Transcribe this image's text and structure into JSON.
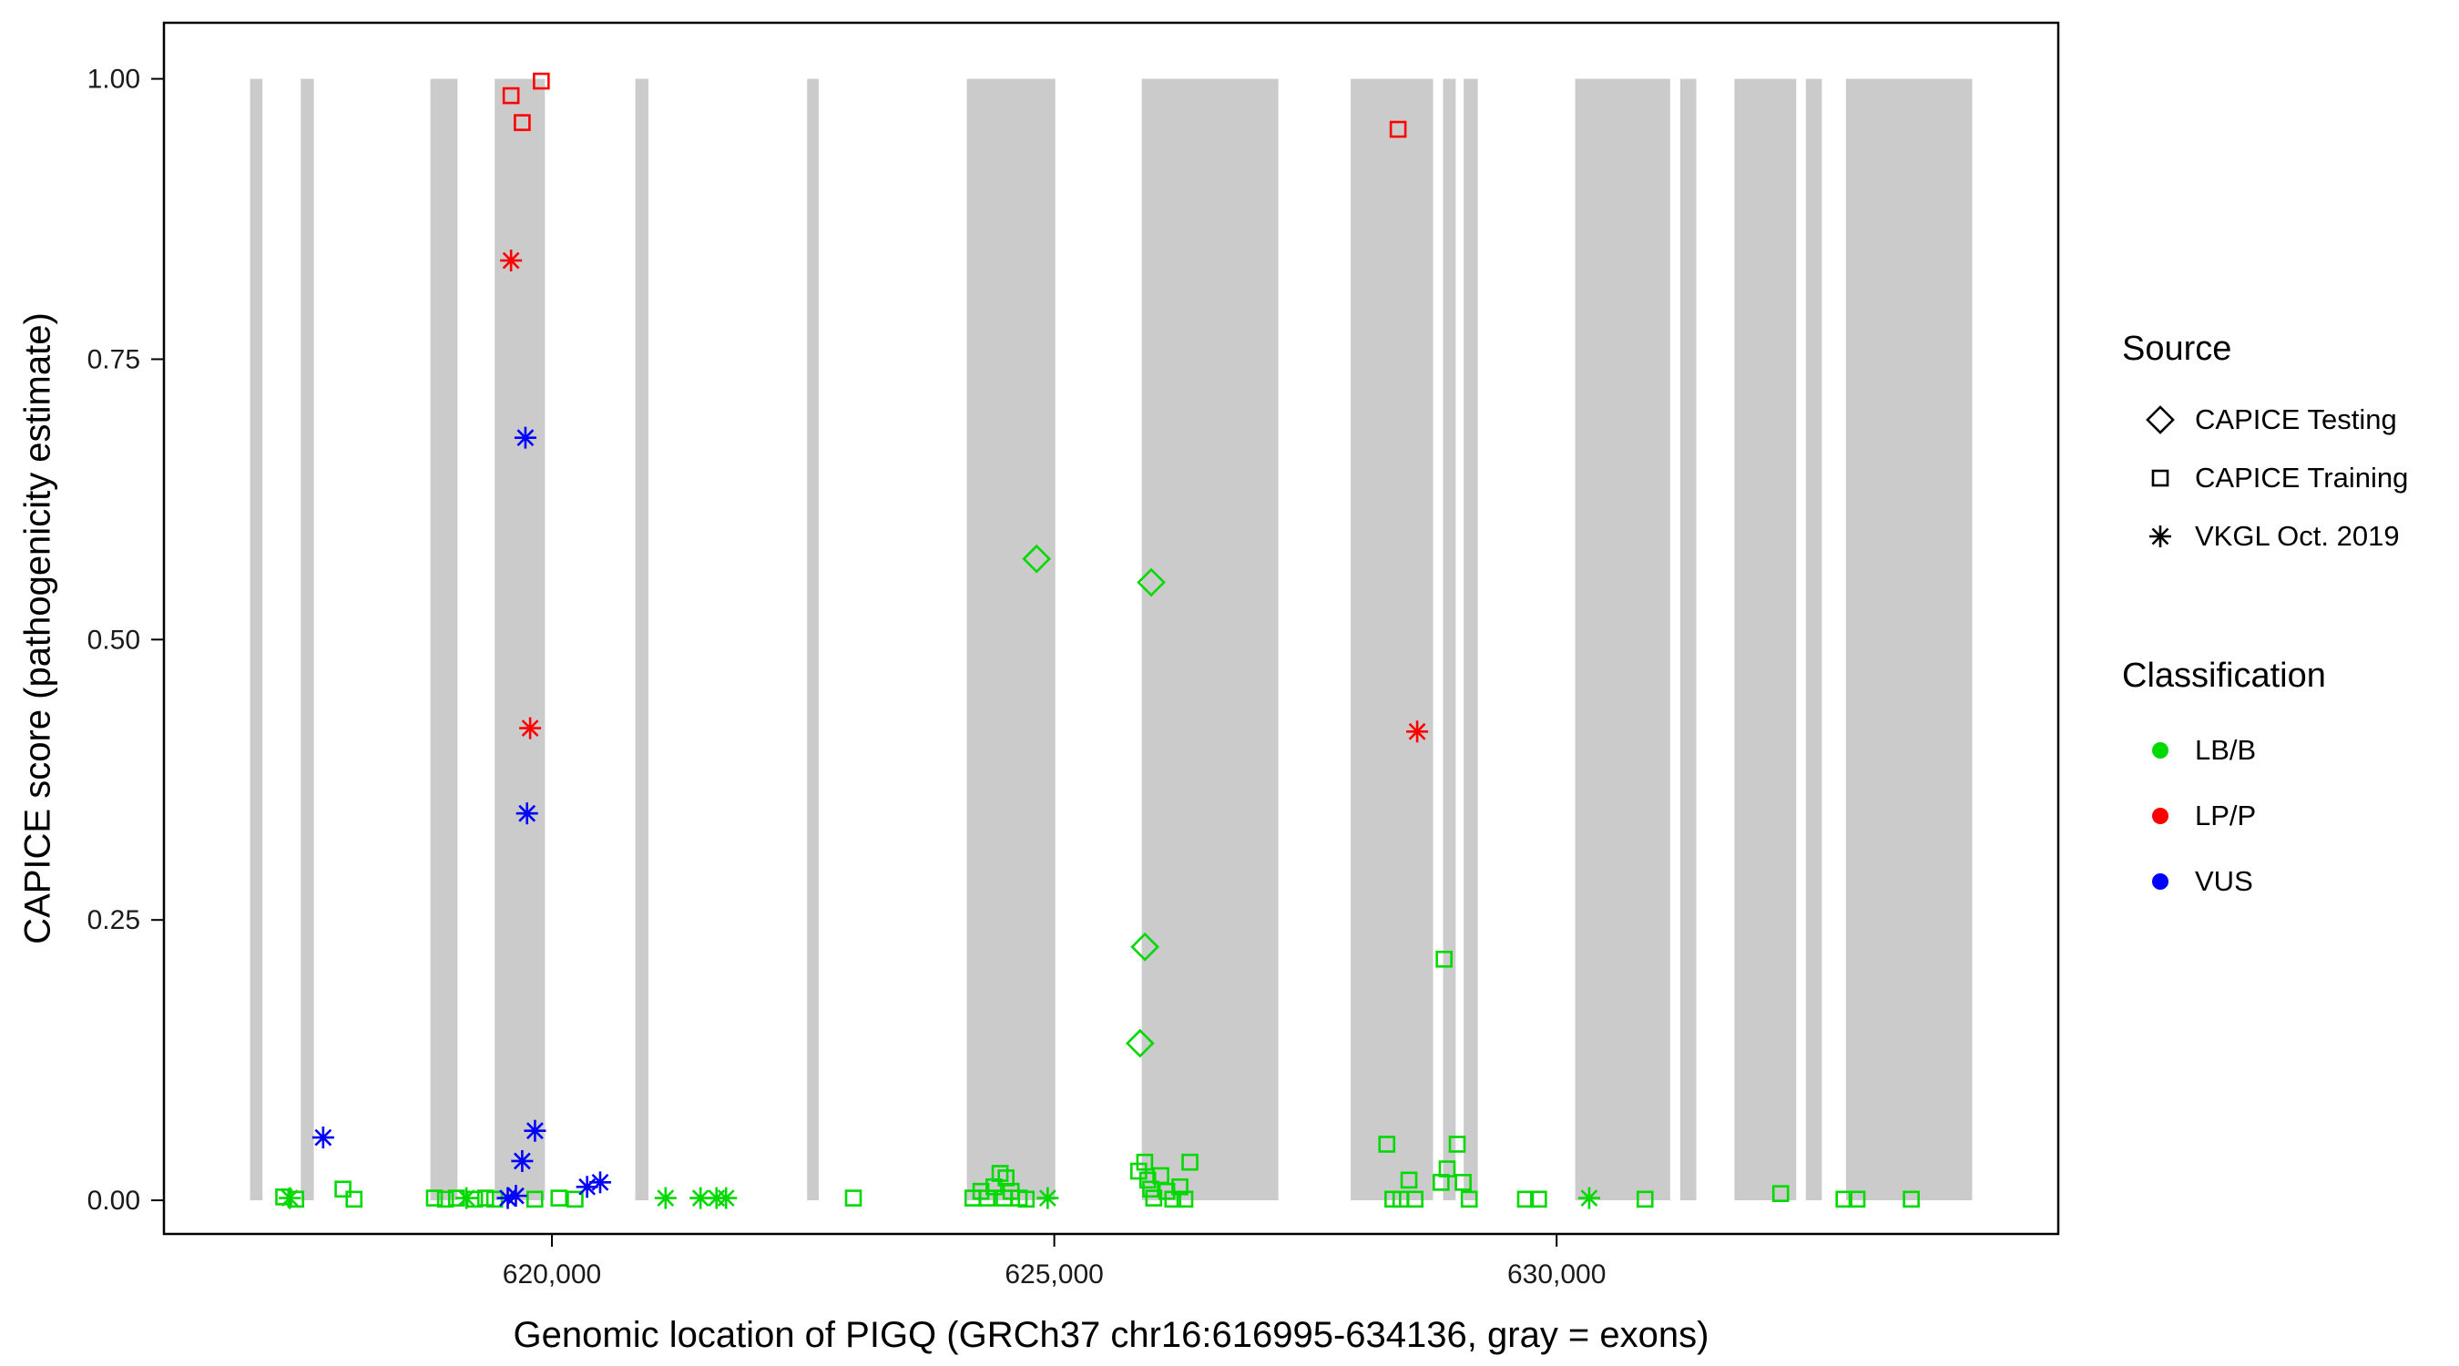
{
  "chart_data": {
    "type": "scatter",
    "title": "",
    "xlabel": "Genomic location of PIGQ (GRCh37 chr16:616995-634136, gray = exons)",
    "ylabel": "CAPICE score (pathogenicity estimate)",
    "xlim": [
      616138,
      634993
    ],
    "ylim": [
      -0.03,
      1.05
    ],
    "x_ticks": [
      {
        "value": 620000,
        "label": "620,000"
      },
      {
        "value": 625000,
        "label": "625,000"
      },
      {
        "value": 630000,
        "label": "630,000"
      }
    ],
    "y_ticks": [
      {
        "value": 0.0,
        "label": "0.00"
      },
      {
        "value": 0.25,
        "label": "0.25"
      },
      {
        "value": 0.5,
        "label": "0.50"
      },
      {
        "value": 0.75,
        "label": "0.75"
      },
      {
        "value": 1.0,
        "label": "1.00"
      }
    ],
    "exon_color": "#CBCBCB",
    "exons": [
      [
        616995,
        617119
      ],
      [
        617500,
        617630
      ],
      [
        618790,
        619060
      ],
      [
        619430,
        619930
      ],
      [
        620830,
        620960
      ],
      [
        622540,
        622655
      ],
      [
        624130,
        625010
      ],
      [
        625870,
        627230
      ],
      [
        627950,
        628770
      ],
      [
        628870,
        628995
      ],
      [
        629075,
        629215
      ],
      [
        630185,
        631130
      ],
      [
        631230,
        631390
      ],
      [
        631770,
        632385
      ],
      [
        632480,
        632640
      ],
      [
        632880,
        634136
      ]
    ],
    "series": [
      {
        "name": "CAPICE Training / LB/B",
        "source": "CAPICE Training",
        "classification": "LB/B",
        "shape": "square",
        "color": "#00D900",
        "points": [
          [
            617330,
            0.003
          ],
          [
            617450,
            0.001
          ],
          [
            617920,
            0.01
          ],
          [
            618030,
            0.001
          ],
          [
            618830,
            0.002
          ],
          [
            618940,
            0.001
          ],
          [
            619050,
            0.002
          ],
          [
            619230,
            0.001
          ],
          [
            619340,
            0.002
          ],
          [
            619430,
            0.001
          ],
          [
            619830,
            0.001
          ],
          [
            620070,
            0.002
          ],
          [
            620230,
            0.001
          ],
          [
            623000,
            0.002
          ],
          [
            624190,
            0.002
          ],
          [
            624270,
            0.008
          ],
          [
            624330,
            0.002
          ],
          [
            624400,
            0.012
          ],
          [
            624460,
            0.024
          ],
          [
            624500,
            0.002
          ],
          [
            624520,
            0.02
          ],
          [
            624570,
            0.008
          ],
          [
            624650,
            0.002
          ],
          [
            624720,
            0.001
          ],
          [
            625840,
            0.026
          ],
          [
            625900,
            0.034
          ],
          [
            625930,
            0.018
          ],
          [
            625960,
            0.01
          ],
          [
            625990,
            0.002
          ],
          [
            626060,
            0.022
          ],
          [
            626120,
            0.008
          ],
          [
            626180,
            0.001
          ],
          [
            626250,
            0.012
          ],
          [
            626300,
            0.001
          ],
          [
            626350,
            0.034
          ],
          [
            628310,
            0.05
          ],
          [
            628370,
            0.001
          ],
          [
            628450,
            0.001
          ],
          [
            628530,
            0.018
          ],
          [
            628590,
            0.001
          ],
          [
            628850,
            0.016
          ],
          [
            628880,
            0.215
          ],
          [
            628910,
            0.028
          ],
          [
            629010,
            0.05
          ],
          [
            629070,
            0.016
          ],
          [
            629130,
            0.001
          ],
          [
            629690,
            0.001
          ],
          [
            629820,
            0.001
          ],
          [
            630880,
            0.001
          ],
          [
            632230,
            0.006
          ],
          [
            632860,
            0.001
          ],
          [
            632990,
            0.001
          ],
          [
            633530,
            0.001
          ]
        ]
      },
      {
        "name": "VKGL Oct. 2019 / LB/B",
        "source": "VKGL Oct. 2019",
        "classification": "LB/B",
        "shape": "asterisk",
        "color": "#00D900",
        "points": [
          [
            617390,
            0.002
          ],
          [
            619149,
            0.002
          ],
          [
            621131,
            0.002
          ],
          [
            621479,
            0.002
          ],
          [
            621638,
            0.002
          ],
          [
            621733,
            0.002
          ],
          [
            624934,
            0.002
          ],
          [
            630324,
            0.002
          ]
        ]
      },
      {
        "name": "CAPICE Testing / LB/B",
        "source": "CAPICE Testing",
        "classification": "LB/B",
        "shape": "diamond",
        "color": "#00D900",
        "points": [
          [
            624824,
            0.572
          ],
          [
            625965,
            0.551
          ],
          [
            625902,
            0.226
          ],
          [
            625854,
            0.14
          ]
        ]
      },
      {
        "name": "VKGL Oct. 2019 / VUS",
        "source": "VKGL Oct. 2019",
        "classification": "VUS",
        "shape": "asterisk",
        "color": "#0000FF",
        "points": [
          [
            619736,
            0.68
          ],
          [
            619752,
            0.345
          ],
          [
            617723,
            0.056
          ],
          [
            619831,
            0.062
          ],
          [
            619704,
            0.035
          ],
          [
            619641,
            0.004
          ],
          [
            619560,
            0.002
          ],
          [
            620350,
            0.012
          ],
          [
            620480,
            0.016
          ]
        ]
      },
      {
        "name": "CAPICE Training / LP/P",
        "source": "CAPICE Training",
        "classification": "LP/P",
        "shape": "square",
        "color": "#FF0000",
        "points": [
          [
            619593,
            0.985
          ],
          [
            619894,
            0.998
          ],
          [
            619704,
            0.961
          ],
          [
            628422,
            0.955
          ]
        ]
      },
      {
        "name": "VKGL Oct. 2019 / LP/P",
        "source": "VKGL Oct. 2019",
        "classification": "LP/P",
        "shape": "asterisk",
        "color": "#FF0000",
        "points": [
          [
            619593,
            0.838
          ],
          [
            619783,
            0.421
          ],
          [
            628612,
            0.418
          ]
        ]
      }
    ],
    "legend": {
      "source": {
        "title": "Source",
        "items": [
          {
            "label": "CAPICE Testing",
            "shape": "diamond"
          },
          {
            "label": "CAPICE Training",
            "shape": "square"
          },
          {
            "label": "VKGL Oct. 2019",
            "shape": "asterisk"
          }
        ]
      },
      "classification": {
        "title": "Classification",
        "items": [
          {
            "label": "LB/B",
            "color": "#00D900"
          },
          {
            "label": "LP/P",
            "color": "#FF0000"
          },
          {
            "label": "VUS",
            "color": "#0000FF"
          }
        ]
      }
    }
  }
}
